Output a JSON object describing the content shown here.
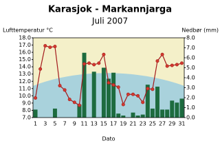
{
  "chart_data": {
    "type": "bar-line",
    "title": "Karasjok - Markannjarga",
    "subtitle": "Juli 2007",
    "ylabel": "Lufttemperatur °C",
    "y2label": "Nedbør (mm)",
    "xlabel": "Dato",
    "categories": [
      "1",
      null,
      "3",
      null,
      "5",
      null,
      "7",
      null,
      "9",
      null,
      "11",
      null,
      "13",
      null,
      "15",
      null,
      "17",
      null,
      "19",
      null,
      "21",
      null,
      "23",
      null,
      "25",
      null,
      "27",
      null,
      "29",
      null,
      "31"
    ],
    "series": [
      {
        "name": "Nedbør",
        "type": "bar",
        "axis": "y2",
        "color": "#1d6b3e",
        "values": [
          0.8,
          0,
          0,
          0,
          0.9,
          0,
          0,
          0,
          0,
          1.3,
          6.5,
          0,
          4.6,
          0,
          5.0,
          3.9,
          4.5,
          0.4,
          0.2,
          0,
          0.5,
          0.2,
          0.3,
          3.3,
          0.9,
          3.1,
          0.8,
          0.8,
          1.7,
          1.5,
          1.9
        ]
      },
      {
        "name": "Lufttemperatur",
        "type": "line",
        "axis": "y",
        "color": "#a3191c",
        "values": [
          9.7,
          13.7,
          16.9,
          16.7,
          16.8,
          11.4,
          10.8,
          9.5,
          9.1,
          8.7,
          14.4,
          14.5,
          14.3,
          14.5,
          15.7,
          11.8,
          11.5,
          11.2,
          8.8,
          10.2,
          10.2,
          10.0,
          9.1,
          11.0,
          10.9,
          14.8,
          15.7,
          14.1,
          14.2,
          14.3,
          14.5
        ]
      }
    ],
    "ylim": [
      7,
      18
    ],
    "yticks": [
      {
        "value": 7,
        "label": "7.0"
      },
      {
        "value": 8,
        "label": "8.0"
      },
      {
        "value": 9,
        "label": "9.0"
      },
      {
        "value": 10,
        "label": "10.0"
      },
      {
        "value": 11,
        "label": "11.0"
      },
      {
        "value": 12,
        "label": "12.0"
      },
      {
        "value": 13,
        "label": "13.0"
      },
      {
        "value": 14,
        "label": "14.0"
      },
      {
        "value": 15,
        "label": "15.0"
      },
      {
        "value": 16,
        "label": "16.0"
      },
      {
        "value": 17,
        "label": "17.0"
      },
      {
        "value": 18,
        "label": "18.0"
      }
    ],
    "y2lim": [
      0,
      8
    ],
    "y2ticks": [
      {
        "value": 0,
        "label": "0.0"
      },
      {
        "value": 1,
        "label": "1.0"
      },
      {
        "value": 2,
        "label": "2.0"
      },
      {
        "value": 3,
        "label": "3.0"
      },
      {
        "value": 4,
        "label": "4.0"
      },
      {
        "value": 5,
        "label": "5.0"
      },
      {
        "value": 6,
        "label": "6.0"
      },
      {
        "value": 7,
        "label": "7.0"
      },
      {
        "value": 8,
        "label": "8.0"
      }
    ]
  }
}
